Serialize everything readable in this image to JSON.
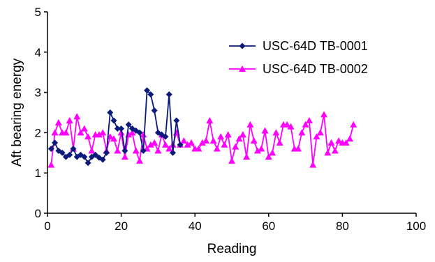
{
  "chart_data": {
    "type": "line",
    "title": "",
    "xlabel": "Reading",
    "ylabel": "Aft bearing energy",
    "xlim": [
      0,
      100
    ],
    "ylim": [
      0,
      5
    ],
    "x_ticks": [
      "0",
      "20",
      "40",
      "60",
      "80",
      "100"
    ],
    "y_ticks": [
      "0",
      "1",
      "2",
      "3",
      "4",
      "5"
    ],
    "grid": false,
    "legend": "top-right",
    "series": [
      {
        "name": "USC-64D TB-0001",
        "color": "#0a1a7a",
        "marker": "diamond",
        "x": [
          1,
          2,
          3,
          4,
          5,
          6,
          7,
          8,
          9,
          10,
          11,
          12,
          13,
          14,
          15,
          16,
          17,
          18,
          19,
          20,
          21,
          22,
          23,
          24,
          25,
          26,
          27,
          28,
          29,
          30,
          31,
          32,
          33,
          34,
          35,
          36
        ],
        "y": [
          1.6,
          1.75,
          1.55,
          1.5,
          1.4,
          1.45,
          1.6,
          1.4,
          1.45,
          1.4,
          1.25,
          1.4,
          1.45,
          1.38,
          1.33,
          1.5,
          2.5,
          2.3,
          2.1,
          2.1,
          1.55,
          2.2,
          2.1,
          2.05,
          2.0,
          1.55,
          3.05,
          2.95,
          2.55,
          2.0,
          1.95,
          1.9,
          2.95,
          1.5,
          2.3,
          1.7
        ]
      },
      {
        "name": "USC-64D TB-0002",
        "color": "#ff00ff",
        "marker": "triangle",
        "x": [
          1,
          2,
          3,
          4,
          5,
          6,
          7,
          8,
          9,
          10,
          11,
          12,
          13,
          14,
          15,
          16,
          17,
          18,
          19,
          20,
          21,
          22,
          23,
          24,
          25,
          26,
          27,
          28,
          29,
          30,
          31,
          32,
          33,
          34,
          35,
          36,
          37,
          38,
          39,
          40,
          41,
          42,
          43,
          44,
          45,
          46,
          47,
          48,
          49,
          50,
          51,
          52,
          53,
          54,
          55,
          56,
          57,
          58,
          59,
          60,
          61,
          62,
          63,
          64,
          65,
          66,
          67,
          68,
          69,
          70,
          71,
          72,
          73,
          74,
          75,
          76,
          77,
          78,
          79,
          80,
          81,
          82,
          83
        ],
        "y": [
          1.2,
          2.0,
          2.25,
          2.0,
          2.0,
          2.3,
          1.6,
          2.4,
          2.0,
          2.1,
          1.9,
          1.55,
          1.95,
          1.95,
          2.0,
          1.55,
          1.9,
          1.85,
          1.55,
          2.0,
          1.4,
          1.95,
          2.0,
          1.55,
          1.3,
          1.95,
          1.6,
          1.7,
          1.75,
          1.55,
          1.95,
          1.7,
          1.6,
          1.7,
          2.0,
          1.7,
          1.8,
          1.7,
          1.75,
          1.6,
          1.6,
          1.75,
          1.8,
          2.3,
          1.8,
          1.6,
          1.9,
          1.7,
          1.95,
          1.3,
          1.65,
          1.85,
          1.95,
          1.4,
          2.2,
          1.8,
          1.55,
          1.6,
          2.05,
          1.4,
          1.5,
          2.0,
          1.75,
          2.2,
          2.2,
          2.15,
          1.6,
          1.6,
          2.0,
          2.2,
          2.3,
          1.2,
          1.9,
          2.0,
          2.45,
          1.5,
          1.75,
          1.55,
          1.8,
          1.75,
          1.75,
          1.85,
          2.2
        ]
      }
    ]
  }
}
